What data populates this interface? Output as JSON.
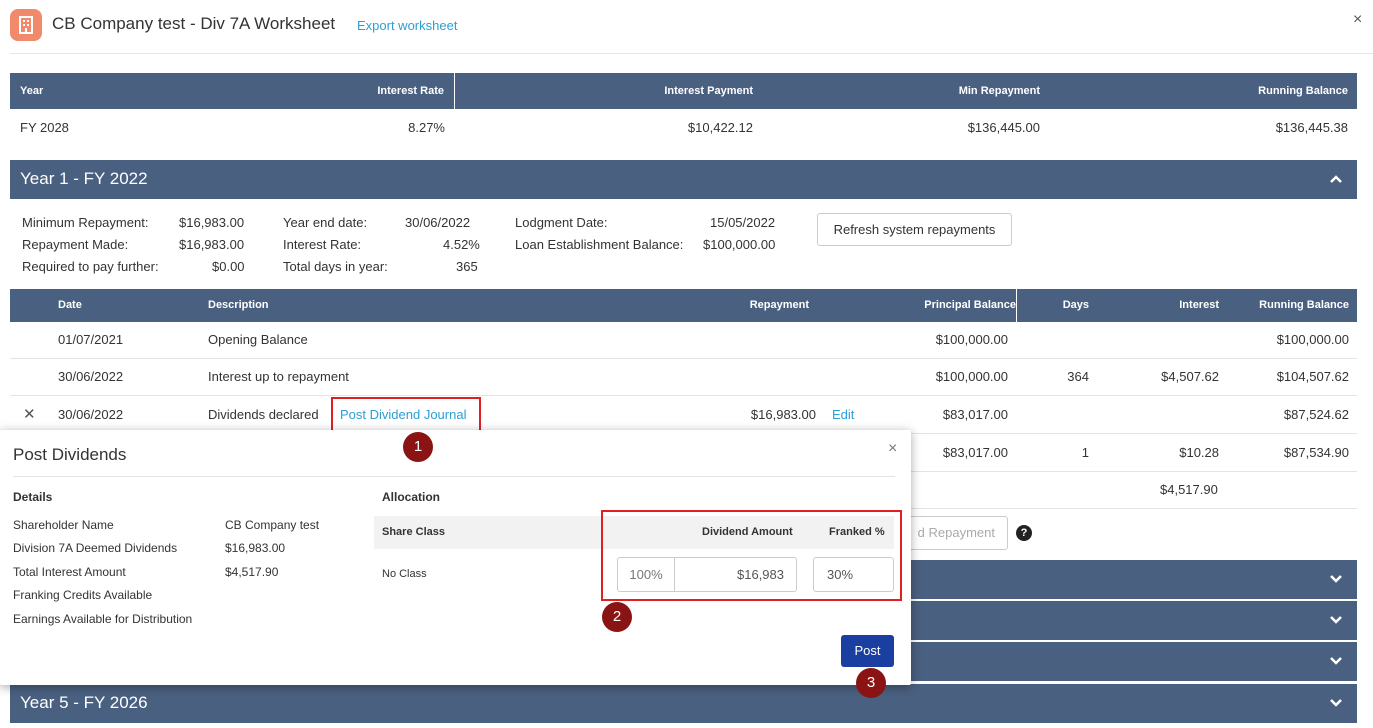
{
  "header": {
    "title": "CB Company test - Div 7A Worksheet",
    "export_label": "Export worksheet",
    "close_icon": "×"
  },
  "summary_table": {
    "columns": [
      "Year",
      "Interest Rate",
      "Interest Payment",
      "Min Repayment",
      "Running Balance"
    ],
    "row": [
      "FY 2028",
      "8.27%",
      "$10,422.12",
      "$136,445.00",
      "$136,445.38"
    ]
  },
  "year1": {
    "title": "Year 1 - FY 2022",
    "info": {
      "min_repayment_label": "Minimum Repayment:",
      "min_repayment": "$16,983.00",
      "repayment_made_label": "Repayment Made:",
      "repayment_made": "$16,983.00",
      "required_label": "Required to pay further:",
      "required": "$0.00",
      "year_end_label": "Year end date:",
      "year_end": "30/06/2022",
      "interest_rate_label": "Interest Rate:",
      "interest_rate": "4.52%",
      "total_days_label": "Total days in year:",
      "total_days": "365",
      "lodgment_label": "Lodgment Date:",
      "lodgment": "15/05/2022",
      "loan_est_label": "Loan Establishment Balance:",
      "loan_est": "$100,000.00"
    },
    "refresh_label": "Refresh system repayments",
    "columns": [
      "Date",
      "Description",
      "Repayment",
      "Principal Balance",
      "Days",
      "Interest",
      "Running Balance"
    ],
    "rows": [
      {
        "date": "01/07/2021",
        "desc": "Opening Balance",
        "repayment": "",
        "principal": "$100,000.00",
        "days": "",
        "interest": "",
        "running": "$100,000.00"
      },
      {
        "date": "30/06/2022",
        "desc": "Interest up to repayment",
        "repayment": "",
        "principal": "$100,000.00",
        "days": "364",
        "interest": "$4,507.62",
        "running": "$104,507.62"
      },
      {
        "date": "30/06/2022",
        "desc": "Dividends declared",
        "link": "Post Dividend Journal",
        "repayment": "$16,983.00",
        "edit": "Edit",
        "principal": "$83,017.00",
        "days": "",
        "interest": "",
        "running": "$87,524.62"
      },
      {
        "principal": "$83,017.00",
        "days": "1",
        "interest": "$10.28",
        "running": "$87,534.90"
      }
    ],
    "total_interest": "$4,517.90",
    "add_repayment_partial": "d Repayment",
    "help_icon": "?"
  },
  "year5": {
    "title": "Year 5 - FY 2026"
  },
  "modal": {
    "title": "Post Dividends",
    "details_heading": "Details",
    "details": [
      {
        "label": "Shareholder Name",
        "value": "CB Company test"
      },
      {
        "label": "Division 7A Deemed Dividends",
        "value": "$16,983.00"
      },
      {
        "label": "Total Interest Amount",
        "value": "$4,517.90"
      },
      {
        "label": "Franking Credits Available",
        "value": ""
      },
      {
        "label": "Earnings Available for Distribution",
        "value": ""
      }
    ],
    "allocation_heading": "Allocation",
    "alloc_columns": [
      "Share Class",
      "Dividend Amount",
      "Franked %"
    ],
    "alloc_row": {
      "share_class": "No Class",
      "percent": "100%",
      "amount": "$16,983",
      "franked": "30%"
    },
    "post_label": "Post",
    "close_icon": "×"
  },
  "badges": [
    "1",
    "2",
    "3"
  ]
}
